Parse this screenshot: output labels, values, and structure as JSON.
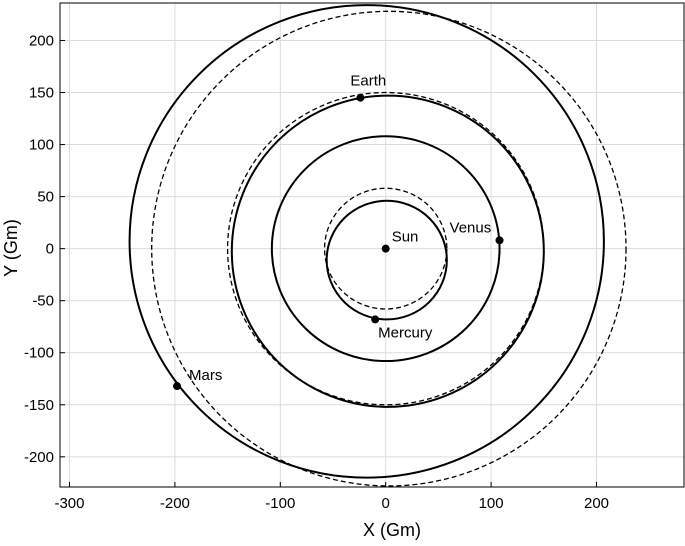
{
  "chart_data": {
    "type": "orbits",
    "xlabel": "X (Gm)",
    "ylabel": "Y (Gm)",
    "xlim": [
      -309,
      283
    ],
    "ylim": [
      -229,
      236
    ],
    "xticks": [
      -300,
      -200,
      -100,
      0,
      100,
      200
    ],
    "yticks": [
      -200,
      -150,
      -100,
      -50,
      0,
      50,
      100,
      150,
      200
    ],
    "grid": true,
    "color": "#000000",
    "orbits": [
      {
        "cx": 1,
        "cy": -11,
        "rx": 57,
        "ry": 57,
        "style": "solid"
      },
      {
        "cx": 0,
        "cy": 0,
        "rx": 58,
        "ry": 58,
        "style": "dashed"
      },
      {
        "cx": 0,
        "cy": 0,
        "rx": 108,
        "ry": 108,
        "style": "solid"
      },
      {
        "cx": 0,
        "cy": 0,
        "rx": 108,
        "ry": 108,
        "style": "dashed"
      },
      {
        "cx": 2,
        "cy": -2.5,
        "rx": 148,
        "ry": 149.5,
        "style": "solid"
      },
      {
        "cx": 0,
        "cy": 0,
        "rx": 150,
        "ry": 150,
        "style": "dashed"
      },
      {
        "cx": -18,
        "cy": 7,
        "rx": 225,
        "ry": 227,
        "style": "solid"
      },
      {
        "cx": 3,
        "cy": 0,
        "rx": 225,
        "ry": 228,
        "style": "dashed"
      }
    ],
    "bodies": [
      {
        "name": "Sun",
        "x": 0,
        "y": 0
      },
      {
        "name": "Earth",
        "x": -24,
        "y": 145
      },
      {
        "name": "Venus",
        "x": 108,
        "y": 8
      },
      {
        "name": "Mercury",
        "x": -10,
        "y": -68
      },
      {
        "name": "Mars",
        "x": -198,
        "y": -132
      }
    ]
  }
}
